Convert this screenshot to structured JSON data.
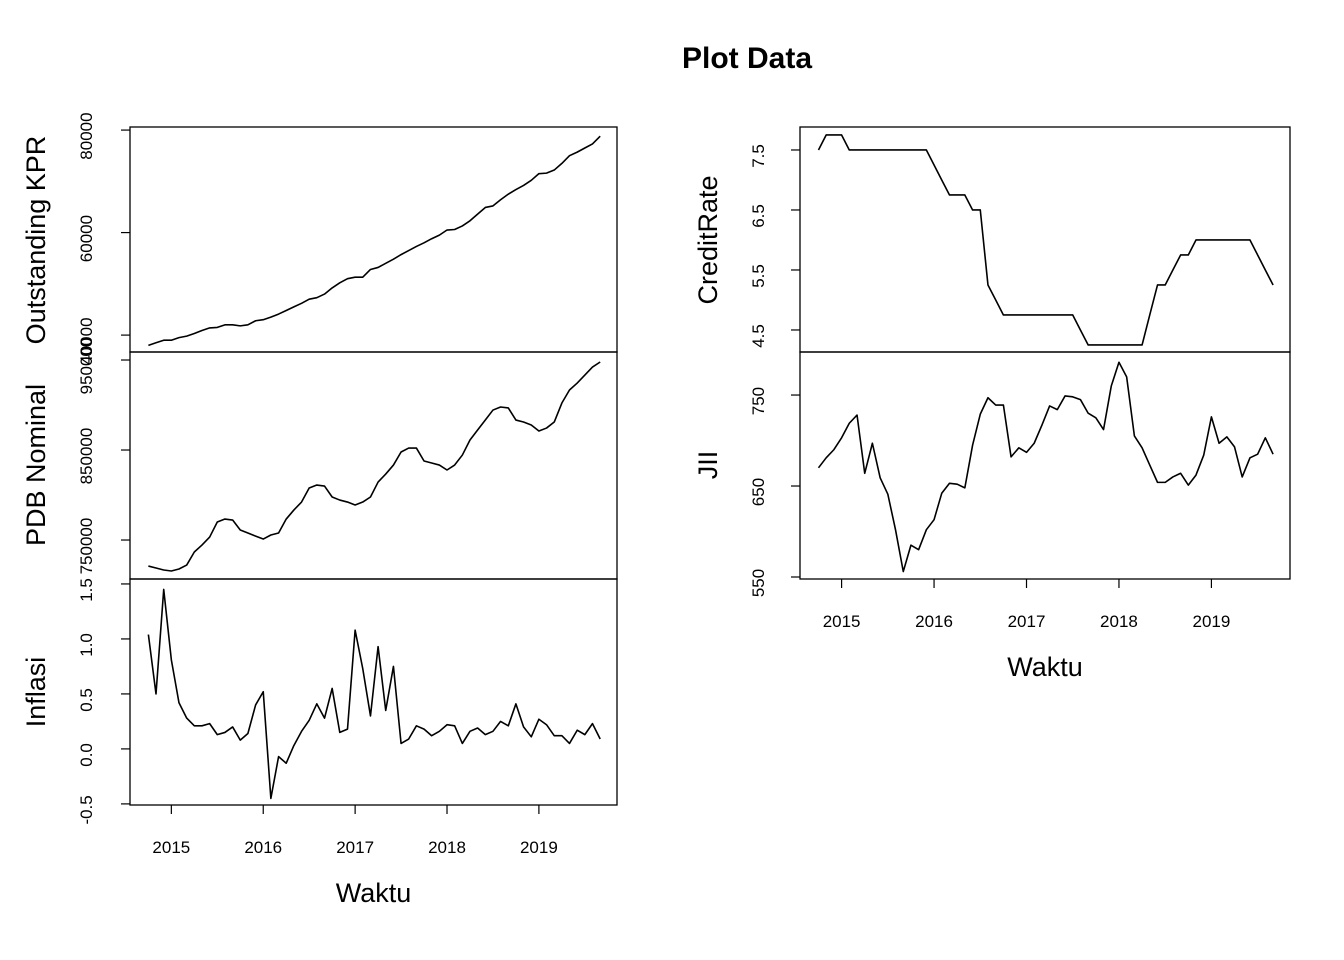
{
  "chart_data": {
    "type": "line",
    "title": "Plot Data",
    "x_label": "Waktu",
    "x": [
      2014.75,
      2014.833,
      2014.917,
      2015,
      2015.083,
      2015.167,
      2015.25,
      2015.333,
      2015.417,
      2015.5,
      2015.583,
      2015.667,
      2015.75,
      2015.833,
      2015.917,
      2016,
      2016.083,
      2016.167,
      2016.25,
      2016.333,
      2016.417,
      2016.5,
      2016.583,
      2016.667,
      2016.75,
      2016.833,
      2016.917,
      2017,
      2017.083,
      2017.167,
      2017.25,
      2017.333,
      2017.417,
      2017.5,
      2017.583,
      2017.667,
      2017.75,
      2017.833,
      2017.917,
      2018,
      2018.083,
      2018.167,
      2018.25,
      2018.333,
      2018.417,
      2018.5,
      2018.583,
      2018.667,
      2018.75,
      2018.833,
      2018.917,
      2019,
      2019.083,
      2019.167,
      2019.25,
      2019.333,
      2019.417,
      2019.5,
      2019.583,
      2019.667
    ],
    "xlim": [
      2014.55,
      2019.85
    ],
    "xticks": [
      2015,
      2016,
      2017,
      2018,
      2019
    ],
    "color": "#000000",
    "panels": [
      {
        "y_label": "Outstanding KPR",
        "values": [
          38000,
          38500,
          39000,
          39000,
          39500,
          39800,
          40300,
          40900,
          41400,
          41500,
          42000,
          42000,
          41800,
          42000,
          42800,
          43000,
          43500,
          44100,
          44800,
          45500,
          46200,
          47000,
          47300,
          48000,
          49200,
          50200,
          51000,
          51300,
          51300,
          52800,
          53200,
          54000,
          54800,
          55700,
          56500,
          57300,
          58000,
          58800,
          59500,
          60500,
          60600,
          61300,
          62300,
          63600,
          64900,
          65200,
          66400,
          67500,
          68400,
          69200,
          70200,
          71500,
          71600,
          72200,
          73500,
          75000,
          75700,
          76500,
          77300,
          78800
        ],
        "ylim": [
          36700,
          80600
        ],
        "yticks": [
          40000,
          60000,
          80000
        ]
      },
      {
        "y_label": "PDB Nominal",
        "values": [
          721100,
          718900,
          716700,
          715600,
          717800,
          722200,
          736700,
          744400,
          753300,
          770000,
          773300,
          772200,
          761100,
          757800,
          754400,
          751100,
          755600,
          757800,
          773300,
          783300,
          792200,
          807800,
          811100,
          810000,
          797800,
          794400,
          792200,
          788900,
          792200,
          797800,
          814400,
          823300,
          833300,
          847800,
          852200,
          852200,
          837800,
          835600,
          833300,
          827800,
          833300,
          844400,
          861100,
          872200,
          883300,
          894400,
          897800,
          896700,
          883300,
          881100,
          877800,
          871100,
          874400,
          881100,
          902200,
          916700,
          924400,
          933300,
          942200,
          947800
        ],
        "ylim": [
          706700,
          958900
        ],
        "yticks": [
          750000,
          850000,
          950000
        ]
      },
      {
        "y_label": "Inflasi",
        "values": [
          1.04,
          0.5,
          1.45,
          0.81,
          0.42,
          0.28,
          0.21,
          0.21,
          0.23,
          0.13,
          0.15,
          0.2,
          0.08,
          0.14,
          0.4,
          0.52,
          -0.45,
          -0.07,
          -0.13,
          0.03,
          0.16,
          0.26,
          0.41,
          0.28,
          0.55,
          0.15,
          0.18,
          1.08,
          0.73,
          0.3,
          0.93,
          0.35,
          0.75,
          0.05,
          0.09,
          0.21,
          0.18,
          0.12,
          0.16,
          0.22,
          0.21,
          0.05,
          0.16,
          0.19,
          0.13,
          0.16,
          0.25,
          0.21,
          0.41,
          0.2,
          0.11,
          0.27,
          0.22,
          0.12,
          0.12,
          0.05,
          0.17,
          0.13,
          0.23,
          0.09
        ],
        "ylim": [
          -0.51,
          1.545
        ],
        "yticks": [
          -0.5,
          {
            "value": 0,
            "label": "0.0"
          },
          0.5,
          {
            "value": 1,
            "label": "1.0"
          },
          1.5
        ]
      },
      {
        "y_label": "CreditRate",
        "values": [
          7.5,
          7.75,
          7.75,
          7.75,
          7.5,
          7.5,
          7.5,
          7.5,
          7.5,
          7.5,
          7.5,
          7.5,
          7.5,
          7.5,
          7.5,
          7.25,
          7,
          6.75,
          6.75,
          6.75,
          6.5,
          6.5,
          5.25,
          5,
          4.75,
          4.75,
          4.75,
          4.75,
          4.75,
          4.75,
          4.75,
          4.75,
          4.75,
          4.75,
          4.5,
          4.25,
          4.25,
          4.25,
          4.25,
          4.25,
          4.25,
          4.25,
          4.25,
          4.75,
          5.25,
          5.25,
          5.5,
          5.75,
          5.75,
          6,
          6,
          6,
          6,
          6,
          6,
          6,
          6,
          5.75,
          5.5,
          5.25
        ],
        "ylim": [
          4.133,
          7.883
        ],
        "yticks": [
          4.5,
          5.5,
          6.5,
          7.5
        ]
      },
      {
        "y_label": "JII",
        "values": [
          670,
          681,
          690,
          703,
          719,
          728,
          664,
          697,
          659,
          641,
          602,
          556,
          585,
          580,
          602,
          613,
          642,
          653,
          652,
          648,
          695,
          729,
          747,
          739,
          739,
          682,
          692,
          687,
          697,
          717,
          738,
          734,
          749,
          748,
          745,
          730,
          725,
          712,
          760,
          786,
          770,
          705,
          692,
          673,
          654,
          654,
          660,
          664,
          651,
          662,
          684,
          726,
          697,
          704,
          693,
          660,
          681,
          685,
          703,
          685
        ],
        "ylim": [
          547.8,
          797.3
        ],
        "yticks": [
          550,
          650,
          750
        ]
      }
    ]
  }
}
